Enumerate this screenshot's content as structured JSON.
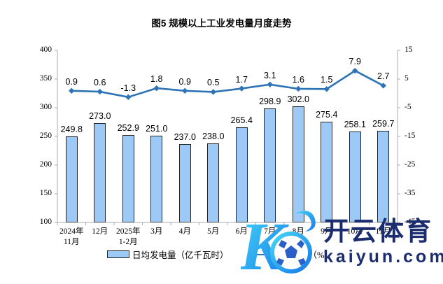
{
  "title": "图5  规模以上工业发电量月度走势",
  "colors": {
    "bar_fill": "#9DC9F7",
    "bar_border": "#262626",
    "line": "#2E74B5",
    "axis": "#ABABAB",
    "text": "#000000",
    "watermark_text": "#1B2C6F",
    "watermark_logo_start": "#45D7F7",
    "watermark_logo_end": "#1678E8"
  },
  "chart_data": {
    "type": "bar",
    "subtype": "bar+line combo, dual y-axis",
    "title": "图5  规模以上工业发电量月度走势",
    "categories": [
      "2024年\n11月",
      "12月",
      "2025年\n1-2月",
      "3月",
      "4月",
      "5月",
      "6月",
      "7月",
      "8月",
      "9月",
      "10月",
      "11月"
    ],
    "series": [
      {
        "name": "日均发电量（亿千瓦时）",
        "type": "bar",
        "axis": "left",
        "values": [
          249.8,
          273.0,
          252.9,
          251.0,
          237.0,
          238.0,
          265.4,
          298.9,
          302.0,
          275.4,
          258.1,
          259.7
        ]
      },
      {
        "name": "当月增速（%）",
        "type": "line",
        "axis": "right",
        "values": [
          0.9,
          0.6,
          -1.3,
          1.8,
          0.9,
          0.5,
          1.7,
          3.1,
          1.6,
          1.5,
          7.9,
          2.7
        ]
      }
    ],
    "left_axis": {
      "min": 100,
      "max": 400,
      "ticks": [
        400,
        350,
        300,
        250,
        200,
        150,
        100
      ]
    },
    "right_axis": {
      "min": -45,
      "max": 15,
      "ticks": [
        15,
        5,
        -5,
        -15,
        -25,
        -35,
        -45
      ]
    },
    "grid": false,
    "legend_position": "bottom",
    "data_labels": true
  },
  "legend": {
    "bar_label": "日均发电量（亿千瓦时）",
    "line_label": "当月增速（%）"
  },
  "watermark": {
    "brand": "开云体育",
    "domain": "kaiyun.com",
    "logo": "kaiyun-k-soccer-logo"
  }
}
